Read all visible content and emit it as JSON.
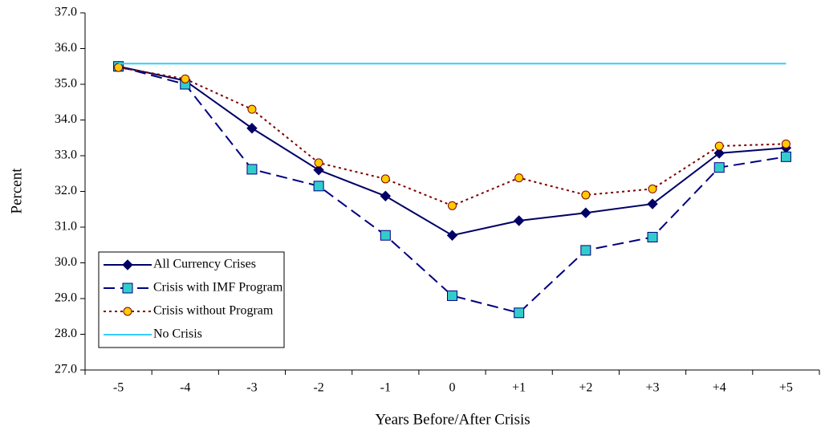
{
  "chart_data": {
    "type": "line",
    "x_label": "Years Before/After Crisis",
    "y_label": "Percent",
    "categories": [
      "-5",
      "-4",
      "-3",
      "-2",
      "-1",
      "0",
      "+1",
      "+2",
      "+3",
      "+4",
      "+5"
    ],
    "series": [
      {
        "name": "All Currency Crises",
        "color": "#000066",
        "dash": "solid",
        "marker": "diamond",
        "marker_fill": "#000066",
        "values": [
          35.5,
          35.1,
          33.77,
          32.6,
          31.87,
          30.77,
          31.18,
          31.4,
          31.65,
          33.07,
          33.22
        ]
      },
      {
        "name": "Crisis with IMF Program",
        "color": "#000080",
        "dash": "dashed",
        "marker": "square",
        "marker_fill": "#33cccc",
        "values": [
          35.5,
          35.0,
          32.62,
          32.15,
          30.77,
          29.08,
          28.6,
          30.35,
          30.72,
          32.67,
          32.97
        ]
      },
      {
        "name": "Crisis without Program",
        "color": "#800000",
        "dash": "dotted",
        "marker": "circle",
        "marker_fill": "#ffcc00",
        "values": [
          35.47,
          35.15,
          34.3,
          32.8,
          32.35,
          31.6,
          32.38,
          31.9,
          32.07,
          33.27,
          33.33
        ]
      },
      {
        "name": "No Crisis",
        "color": "#33ccff",
        "dash": "solid",
        "marker": "none",
        "marker_fill": "#33ccff",
        "values": [
          35.58,
          35.58,
          35.58,
          35.58,
          35.58,
          35.58,
          35.58,
          35.58,
          35.58,
          35.58,
          35.58
        ]
      }
    ],
    "ylim": [
      27,
      37
    ],
    "yticks": [
      {
        "value": 27,
        "label": "27.0"
      },
      {
        "value": 28,
        "label": "28.0"
      },
      {
        "value": 29,
        "label": "29.0"
      },
      {
        "value": 30,
        "label": "30.0"
      },
      {
        "value": 31,
        "label": "31.0"
      },
      {
        "value": 32,
        "label": "32.0"
      },
      {
        "value": 33,
        "label": "33.0"
      },
      {
        "value": 34,
        "label": "34.0"
      },
      {
        "value": 35,
        "label": "35.0"
      },
      {
        "value": 36,
        "label": "36.0"
      },
      {
        "value": 37,
        "label": "37.0"
      }
    ],
    "grid": false,
    "legend_position": "lower left"
  }
}
